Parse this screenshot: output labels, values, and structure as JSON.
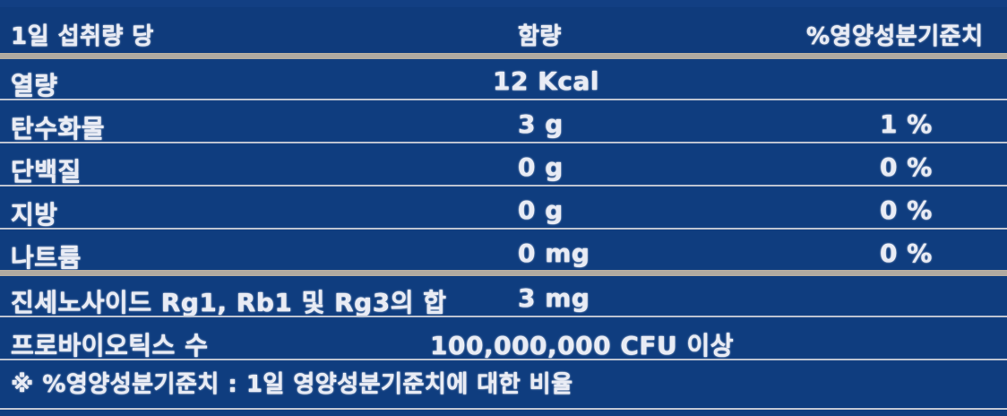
{
  "table": {
    "header": {
      "col1": "1일 섭취량 당",
      "col2": "함량",
      "col3": "%영양성분기준치"
    },
    "rows": [
      {
        "name": "열량",
        "amount": "12 Kcal",
        "percent": ""
      },
      {
        "name": "탄수화물",
        "amount": "3 g",
        "percent": "1 %"
      },
      {
        "name": "단백질",
        "amount": "0 g",
        "percent": "0 %"
      },
      {
        "name": "지방",
        "amount": "0 g",
        "percent": "0 %"
      },
      {
        "name": "나트륨",
        "amount": "0 mg",
        "percent": "0 %"
      },
      {
        "name": "진세노사이드 Rg1, Rb1 및 Rg3의 합",
        "amount": "3 mg",
        "percent": ""
      },
      {
        "name": "프로바이오틱스 수",
        "amount": "100,000,000 CFU 이상",
        "percent": ""
      }
    ],
    "footnote": "※ %영양성분기준치 : 1일 영양성분기준치에 대한 비율"
  }
}
